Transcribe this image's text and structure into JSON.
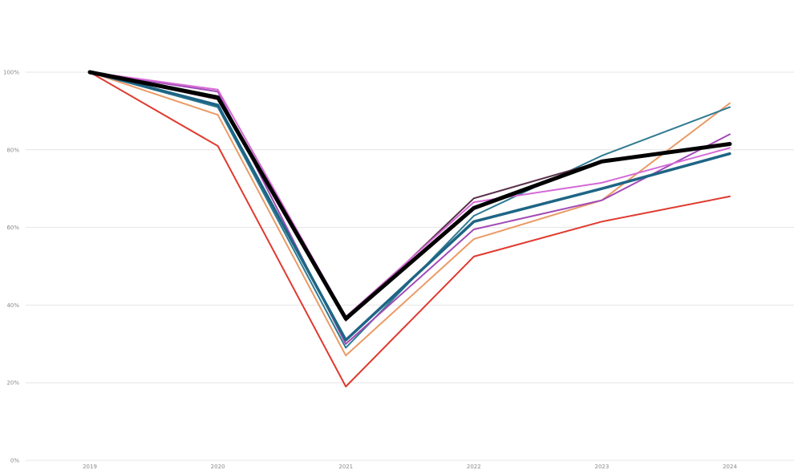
{
  "chart_data": {
    "type": "line",
    "title": "",
    "xlabel": "",
    "ylabel": "",
    "x": [
      "2019",
      "2020",
      "2021",
      "2022",
      "2023",
      "2024"
    ],
    "ylim": [
      0,
      100
    ],
    "yticks": [
      0,
      20,
      40,
      60,
      80,
      100
    ],
    "ytick_labels": [
      "0%",
      "20%",
      "40%",
      "60%",
      "80%",
      "100%"
    ],
    "grid": true,
    "legend": "none",
    "series": [
      {
        "color": "#e03a2f",
        "width": 2,
        "values": [
          100,
          81,
          19,
          52.5,
          61.5,
          68
        ]
      },
      {
        "color": "#eb9a66",
        "width": 2,
        "values": [
          100,
          89,
          27,
          57,
          67,
          92
        ]
      },
      {
        "color": "#2f7a91",
        "width": 2,
        "values": [
          100,
          91,
          29,
          63,
          78.5,
          91
        ]
      },
      {
        "color": "#a24bb5",
        "width": 2,
        "values": [
          100,
          95,
          30,
          59.5,
          67,
          84
        ]
      },
      {
        "color": "#5a2f4a",
        "width": 2,
        "values": [
          100,
          93,
          36,
          67.5,
          77,
          81.5
        ]
      },
      {
        "color": "#d46ad6",
        "width": 2,
        "values": [
          100,
          95.5,
          37,
          66.5,
          71.5,
          80.5
        ]
      },
      {
        "color": "#1e6585",
        "width": 3.5,
        "values": [
          100,
          91.5,
          31,
          61.5,
          70,
          79
        ]
      },
      {
        "color": "#000000",
        "width": 5,
        "values": [
          100,
          93.5,
          36.5,
          65,
          77,
          81.5
        ]
      }
    ]
  }
}
